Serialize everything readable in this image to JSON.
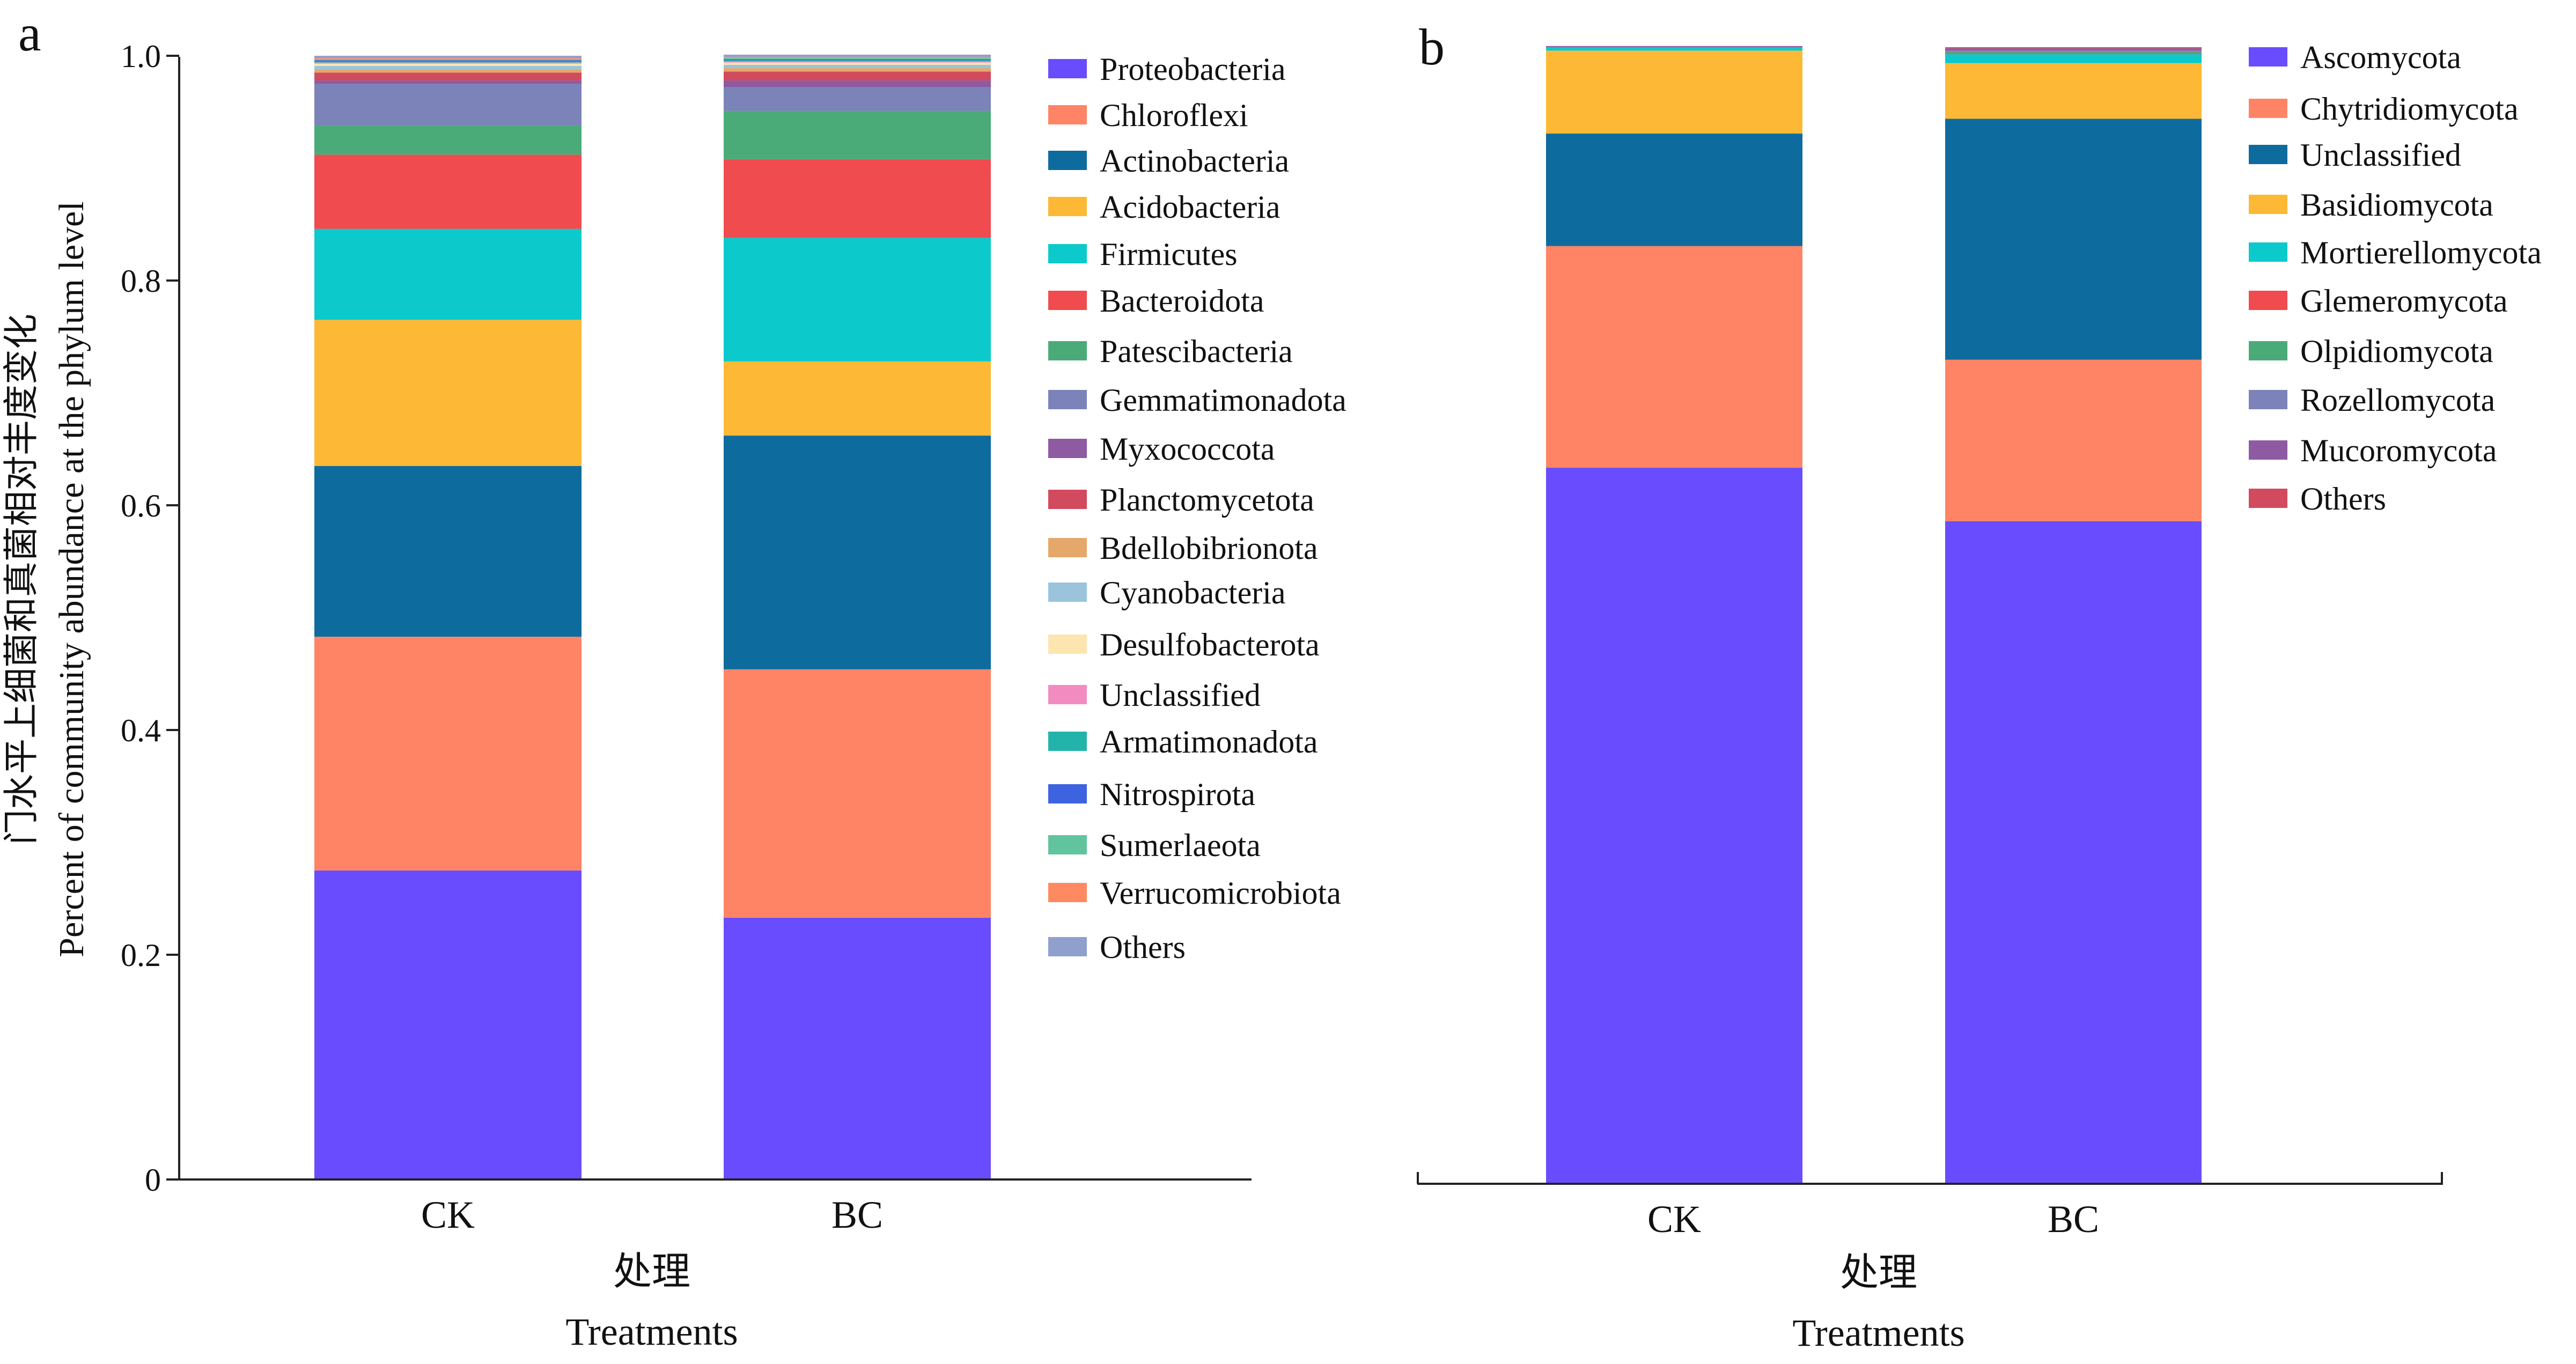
{
  "ylabel_cn": "门水平上细菌和真菌相对丰度变化",
  "ylabel_en": "Percent of community abundance at the phylum level",
  "chart_data": [
    {
      "type": "bar",
      "stacked": true,
      "panel_label": "a",
      "categories": [
        "CK",
        "BC"
      ],
      "xlabel_cn": "处理",
      "xlabel_en": "Treatments",
      "ylim": [
        0,
        1.0
      ],
      "yticks": [
        "0",
        "0.2",
        "0.4",
        "0.6",
        "0.8",
        "1.0"
      ],
      "legend_position": "right",
      "series": [
        {
          "name": "Proteobacteria",
          "color": "#6a4cff",
          "values": [
            0.275,
            0.233
          ]
        },
        {
          "name": "Chloroflexi",
          "color": "#ff8466",
          "values": [
            0.208,
            0.221
          ]
        },
        {
          "name": "Actinobacteria",
          "color": "#0e6b9e",
          "values": [
            0.152,
            0.208
          ]
        },
        {
          "name": "Acidobacteria",
          "color": "#fdb935",
          "values": [
            0.13,
            0.066
          ]
        },
        {
          "name": "Firmicutes",
          "color": "#0cc9cc",
          "values": [
            0.081,
            0.11
          ]
        },
        {
          "name": "Bacteroidota",
          "color": "#f04b4e",
          "values": [
            0.066,
            0.07
          ]
        },
        {
          "name": "Patescibacteria",
          "color": "#4aab78",
          "values": [
            0.026,
            0.043
          ]
        },
        {
          "name": "Gemmatimonadota",
          "color": "#7b83b8",
          "values": [
            0.037,
            0.021
          ]
        },
        {
          "name": "Myxococcota",
          "color": "#8e5aa2",
          "values": [
            0.003,
            0.006
          ]
        },
        {
          "name": "Planctomycetota",
          "color": "#d24a5e",
          "values": [
            0.007,
            0.008
          ]
        },
        {
          "name": "Bdellobibrionota",
          "color": "#e5a86a",
          "values": [
            0.003,
            0.003
          ]
        },
        {
          "name": "Cyanobacteria",
          "color": "#9bc4dc",
          "values": [
            0.003,
            0.003
          ]
        },
        {
          "name": "Desulfobacterota",
          "color": "#fde5b0",
          "values": [
            0.002,
            0.002
          ]
        },
        {
          "name": "Unclassified",
          "color": "#f28cc0",
          "values": [
            0.001,
            0.001
          ]
        },
        {
          "name": "Armatimonadota",
          "color": "#22b4aa",
          "values": [
            0.001,
            0.001
          ]
        },
        {
          "name": "Nitrospirota",
          "color": "#3d63e0",
          "values": [
            0.001,
            0.001
          ]
        },
        {
          "name": "Sumerlaeota",
          "color": "#62c49e",
          "values": [
            0.001,
            0.001
          ]
        },
        {
          "name": "Verrucomicrobiota",
          "color": "#ff8a62",
          "values": [
            0.001,
            0.001
          ]
        },
        {
          "name": "Others",
          "color": "#8fa0cc",
          "values": [
            0.002,
            0.002
          ]
        }
      ]
    },
    {
      "type": "bar",
      "stacked": true,
      "panel_label": "b",
      "categories": [
        "CK",
        "BC"
      ],
      "xlabel_cn": "处理",
      "xlabel_en": "Treatments",
      "ylim": [
        0,
        1.0
      ],
      "legend_position": "right",
      "series": [
        {
          "name": "Ascomycota",
          "color": "#6a4cff",
          "values": [
            0.63,
            0.583
          ]
        },
        {
          "name": "Chytridiomycota",
          "color": "#ff8466",
          "values": [
            0.195,
            0.142
          ]
        },
        {
          "name": "Unclassified",
          "color": "#0e6b9e",
          "values": [
            0.099,
            0.212
          ]
        },
        {
          "name": "Basidiomycota",
          "color": "#fdb935",
          "values": [
            0.073,
            0.049
          ]
        },
        {
          "name": "Mortierellomycota",
          "color": "#0cc9cc",
          "values": [
            0.003,
            0.008
          ]
        },
        {
          "name": "Glemeromycota",
          "color": "#f04b4e",
          "values": [
            0.0,
            0.001
          ]
        },
        {
          "name": "Olpidiomycota",
          "color": "#4aab78",
          "values": [
            0.0,
            0.001
          ]
        },
        {
          "name": "Rozellomycota",
          "color": "#7b83b8",
          "values": [
            0.0,
            0.001
          ]
        },
        {
          "name": "Mucoromycota",
          "color": "#8e5aa2",
          "values": [
            0.001,
            0.002
          ]
        },
        {
          "name": "Others",
          "color": "#d24a5e",
          "values": [
            0.0,
            0.001
          ]
        }
      ]
    }
  ]
}
